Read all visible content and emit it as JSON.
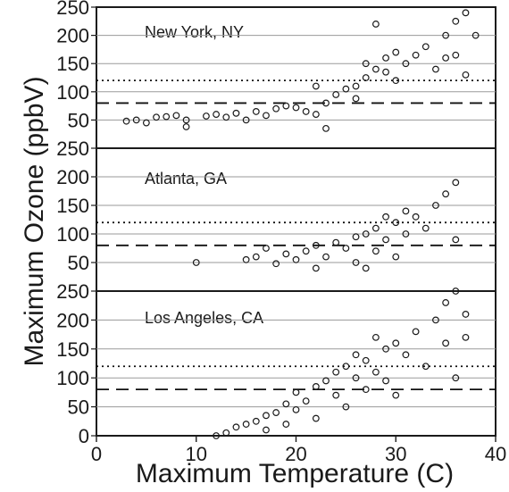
{
  "chart_data": {
    "type": "scatter",
    "layout": "three vertically stacked panels sharing the x-axis",
    "xlabel": "Maximum Temperature (C)",
    "ylabel": "Maximum Ozone (ppbV)",
    "xlim": [
      0,
      40
    ],
    "ylim": [
      0,
      250
    ],
    "x_ticks": [
      0,
      10,
      20,
      30,
      40
    ],
    "y_ticks": [
      50,
      100,
      150,
      200,
      250
    ],
    "bottom_panel_y_ticks": [
      0,
      50,
      100,
      150,
      200,
      250
    ],
    "grid": "horizontal gridlines",
    "marker": "open circle",
    "reference_lines": [
      {
        "name": "dotted",
        "y": 120
      },
      {
        "name": "dashed",
        "y": 80
      }
    ],
    "panels": [
      {
        "label": "New York, NY",
        "points": [
          [
            3,
            48
          ],
          [
            4,
            50
          ],
          [
            5,
            45
          ],
          [
            6,
            55
          ],
          [
            7,
            56
          ],
          [
            8,
            58
          ],
          [
            9,
            50
          ],
          [
            9,
            38
          ],
          [
            11,
            57
          ],
          [
            12,
            60
          ],
          [
            13,
            55
          ],
          [
            14,
            62
          ],
          [
            15,
            50
          ],
          [
            16,
            65
          ],
          [
            17,
            58
          ],
          [
            18,
            70
          ],
          [
            19,
            75
          ],
          [
            20,
            72
          ],
          [
            21,
            65
          ],
          [
            22,
            60
          ],
          [
            22,
            110
          ],
          [
            23,
            80
          ],
          [
            23,
            35
          ],
          [
            24,
            95
          ],
          [
            25,
            105
          ],
          [
            26,
            88
          ],
          [
            26,
            110
          ],
          [
            27,
            125
          ],
          [
            27,
            150
          ],
          [
            28,
            140
          ],
          [
            28,
            220
          ],
          [
            29,
            135
          ],
          [
            29,
            160
          ],
          [
            30,
            120
          ],
          [
            30,
            170
          ],
          [
            31,
            150
          ],
          [
            32,
            165
          ],
          [
            33,
            180
          ],
          [
            34,
            140
          ],
          [
            35,
            200
          ],
          [
            35,
            160
          ],
          [
            36,
            225
          ],
          [
            36,
            165
          ],
          [
            37,
            240
          ],
          [
            37,
            130
          ],
          [
            38,
            200
          ]
        ]
      },
      {
        "label": "Atlanta, GA",
        "points": [
          [
            10,
            50
          ],
          [
            15,
            55
          ],
          [
            16,
            60
          ],
          [
            17,
            75
          ],
          [
            18,
            48
          ],
          [
            19,
            65
          ],
          [
            20,
            55
          ],
          [
            21,
            70
          ],
          [
            22,
            80
          ],
          [
            22,
            40
          ],
          [
            23,
            60
          ],
          [
            24,
            85
          ],
          [
            25,
            75
          ],
          [
            26,
            95
          ],
          [
            26,
            50
          ],
          [
            27,
            100
          ],
          [
            27,
            40
          ],
          [
            28,
            110
          ],
          [
            28,
            70
          ],
          [
            29,
            90
          ],
          [
            29,
            130
          ],
          [
            30,
            120
          ],
          [
            30,
            60
          ],
          [
            31,
            140
          ],
          [
            31,
            100
          ],
          [
            32,
            130
          ],
          [
            33,
            110
          ],
          [
            34,
            150
          ],
          [
            35,
            170
          ],
          [
            36,
            190
          ],
          [
            36,
            90
          ]
        ]
      },
      {
        "label": "Los Angeles, CA",
        "points": [
          [
            12,
            0
          ],
          [
            13,
            5
          ],
          [
            14,
            15
          ],
          [
            15,
            20
          ],
          [
            16,
            25
          ],
          [
            17,
            10
          ],
          [
            17,
            35
          ],
          [
            18,
            40
          ],
          [
            19,
            20
          ],
          [
            19,
            55
          ],
          [
            20,
            45
          ],
          [
            20,
            75
          ],
          [
            21,
            60
          ],
          [
            22,
            85
          ],
          [
            22,
            30
          ],
          [
            23,
            95
          ],
          [
            24,
            70
          ],
          [
            24,
            110
          ],
          [
            25,
            120
          ],
          [
            25,
            50
          ],
          [
            26,
            100
          ],
          [
            26,
            140
          ],
          [
            27,
            130
          ],
          [
            27,
            80
          ],
          [
            28,
            170
          ],
          [
            28,
            110
          ],
          [
            29,
            150
          ],
          [
            29,
            95
          ],
          [
            30,
            160
          ],
          [
            30,
            70
          ],
          [
            31,
            140
          ],
          [
            32,
            180
          ],
          [
            33,
            120
          ],
          [
            34,
            200
          ],
          [
            35,
            230
          ],
          [
            35,
            160
          ],
          [
            36,
            250
          ],
          [
            36,
            100
          ],
          [
            37,
            210
          ],
          [
            37,
            170
          ]
        ]
      }
    ]
  }
}
